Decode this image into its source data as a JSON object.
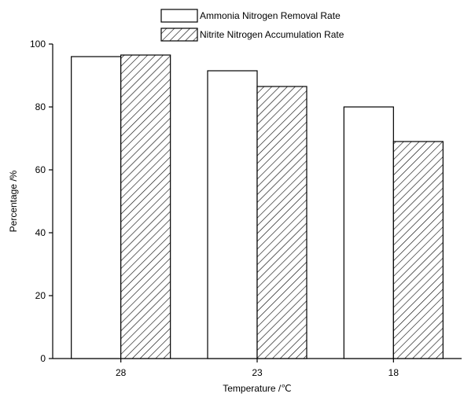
{
  "chart_data": {
    "type": "bar",
    "xlabel": "Temperature /℃",
    "ylabel": "Percentage /%",
    "categories": [
      "28",
      "23",
      "18"
    ],
    "ylim": [
      0,
      100
    ],
    "yticks": [
      0,
      20,
      40,
      60,
      80,
      100
    ],
    "grid": false,
    "legend_position": "top",
    "series": [
      {
        "name": "Ammonia Nitrogen Removal Rate",
        "values": [
          96,
          91.5,
          80
        ],
        "fill": "none"
      },
      {
        "name": "Nitrite Nitrogen Accumulation Rate",
        "values": [
          96.5,
          86.5,
          69
        ],
        "fill": "hatched"
      }
    ],
    "colors": {
      "stroke": "#000000",
      "background": "#ffffff",
      "hatch": "#000000"
    }
  }
}
